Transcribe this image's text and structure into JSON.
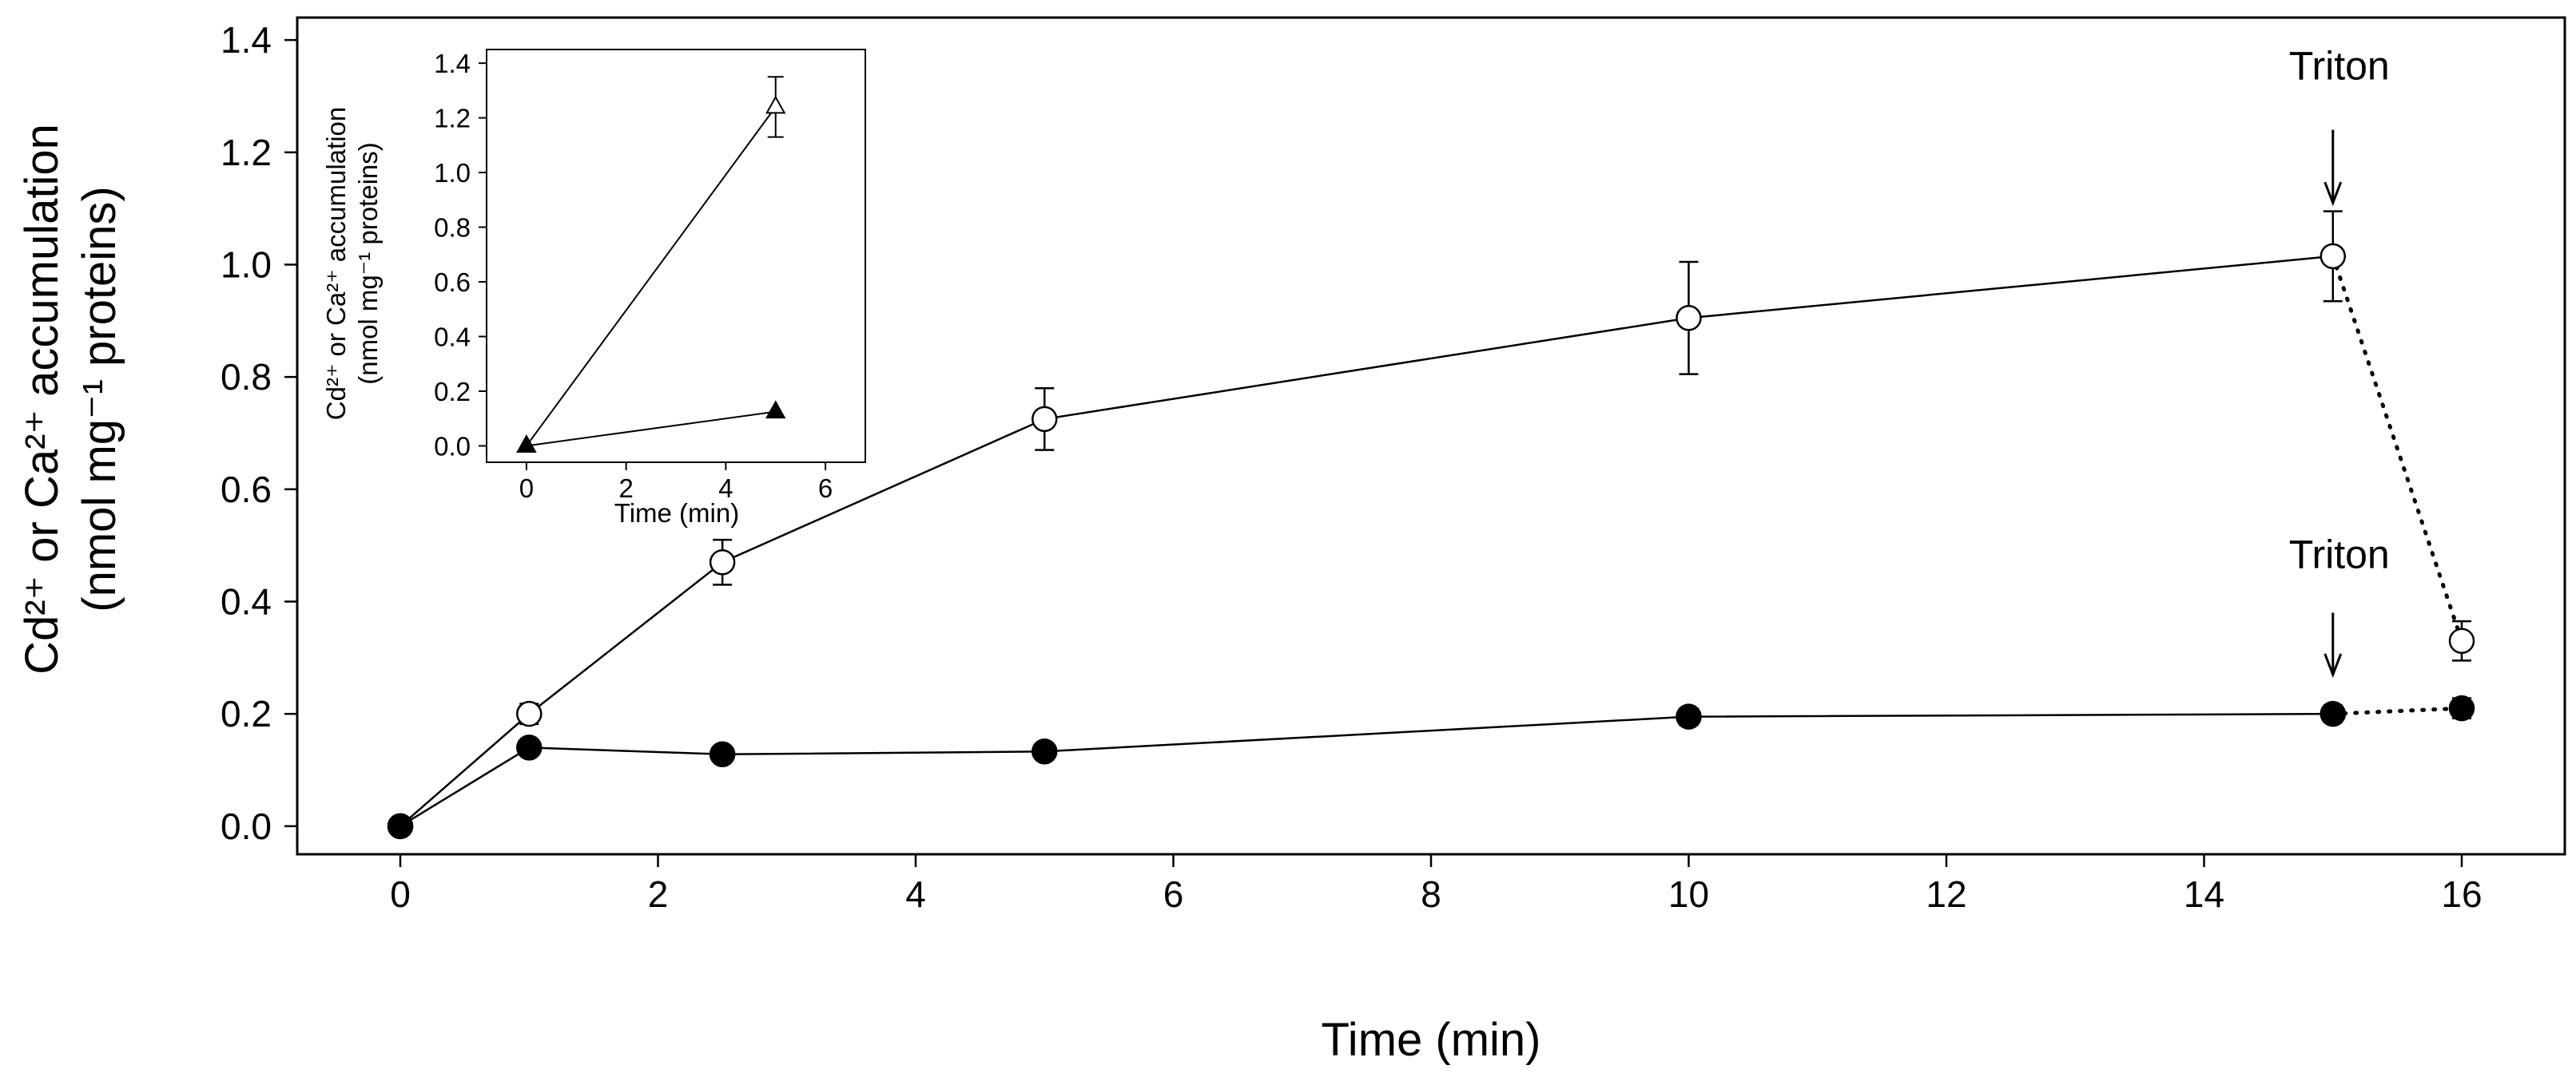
{
  "chart_data": [
    {
      "id": "main",
      "type": "line",
      "title": "",
      "xlabel": "Time (min)",
      "ylabel_line1": "Cd²⁺ or Ca²⁺ accumulation",
      "ylabel_line2": "(nmol mg⁻¹ proteins)",
      "xlim": [
        -0.8,
        16.8
      ],
      "ylim": [
        -0.05,
        1.44
      ],
      "xticks": [
        0,
        2,
        4,
        6,
        8,
        10,
        12,
        14,
        16
      ],
      "xtick_labels": [
        "0",
        "2",
        "4",
        "6",
        "8",
        "10",
        "12",
        "14",
        "16"
      ],
      "yticks": [
        0.0,
        0.2,
        0.4,
        0.6,
        0.8,
        1.0,
        1.2,
        1.4
      ],
      "ytick_labels": [
        "0.0",
        "0.2",
        "0.4",
        "0.6",
        "0.8",
        "1.0",
        "1.2",
        "1.4"
      ],
      "grid": false,
      "series": [
        {
          "name": "open circles",
          "marker": "circle-open",
          "x": [
            0,
            1,
            2.5,
            5,
            10,
            15
          ],
          "y": [
            0.0,
            0.2,
            0.47,
            0.725,
            0.905,
            1.015
          ],
          "err": [
            0,
            0.018,
            0.04,
            0.055,
            0.1,
            0.08
          ],
          "line": "solid"
        },
        {
          "name": "filled circles",
          "marker": "circle-filled",
          "x": [
            0,
            1,
            2.5,
            5,
            10,
            15
          ],
          "y": [
            0.0,
            0.14,
            0.128,
            0.133,
            0.195,
            0.2
          ],
          "err": [
            0,
            0.012,
            0.01,
            0.01,
            0.015,
            0.015
          ],
          "line": "solid"
        },
        {
          "name": "open circles after Triton",
          "marker": "circle-open",
          "x": [
            15,
            16
          ],
          "y": [
            1.015,
            0.33
          ],
          "err": [
            0,
            0.035
          ],
          "line": "dotted",
          "marker_indices": [
            1
          ]
        },
        {
          "name": "filled circles after Triton",
          "marker": "circle-filled",
          "x": [
            15,
            16
          ],
          "y": [
            0.2,
            0.21
          ],
          "err": [
            0,
            0.018
          ],
          "line": "dotted",
          "marker_indices": [
            1
          ]
        }
      ],
      "annotations": [
        {
          "text": "Triton",
          "x": 15,
          "y_text": 1.33,
          "arrow_from": 1.24,
          "arrow_to": 1.11
        },
        {
          "text": "Triton",
          "x": 15,
          "y_text": 0.46,
          "arrow_from": 0.38,
          "arrow_to": 0.27
        }
      ]
    },
    {
      "id": "inset",
      "type": "line",
      "title": "",
      "xlabel": "Time (min)",
      "ylabel_line1": "Cd²⁺ or Ca²⁺ accumulation",
      "ylabel_line2": "(nmol mg⁻¹ proteins)",
      "xlim": [
        -0.8,
        6.8
      ],
      "ylim": [
        -0.06,
        1.45
      ],
      "xticks": [
        0,
        2,
        4,
        6
      ],
      "xtick_labels": [
        "0",
        "2",
        "4",
        "6"
      ],
      "yticks": [
        0.0,
        0.2,
        0.4,
        0.6,
        0.8,
        1.0,
        1.2,
        1.4
      ],
      "ytick_labels": [
        "0.0",
        "0.2",
        "0.4",
        "0.6",
        "0.8",
        "1.0",
        "1.2",
        "1.4"
      ],
      "grid": false,
      "series": [
        {
          "name": "open triangles",
          "marker": "triangle-open",
          "x": [
            0,
            5
          ],
          "y": [
            0.0,
            1.24
          ],
          "err": [
            0,
            0.11
          ],
          "line": "solid"
        },
        {
          "name": "filled triangles",
          "marker": "triangle-filled",
          "x": [
            0,
            5
          ],
          "y": [
            0.0,
            0.125
          ],
          "err": [
            0,
            0
          ],
          "line": "solid"
        }
      ]
    }
  ]
}
